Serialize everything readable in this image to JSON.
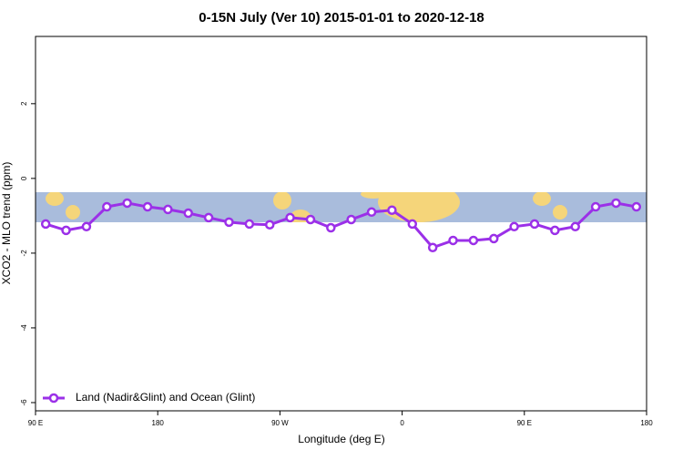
{
  "chart_data": {
    "type": "line",
    "title": "0-15N July (Ver 10)   2015-01-01 to 2020-12-18",
    "x_label": "Longitude (deg E)",
    "y_label": "XCO2 - MLO trend (ppm)",
    "x": [
      97.5,
      112.5,
      127.5,
      142.5,
      157.5,
      172.5,
      187.5,
      202.5,
      217.5,
      232.5,
      247.5,
      262.5,
      277.5,
      292.5,
      307.5,
      322.5,
      337.5,
      352.5,
      367.5,
      382.5,
      397.5,
      412.5,
      427.5,
      442.5,
      457.5,
      472.5,
      487.5,
      502.5,
      517.5,
      532.5
    ],
    "series": [
      {
        "name": "Land (Nadir&Glint) and Ocean (Glint)",
        "color": "#9b30e8",
        "values": [
          -1.22,
          -1.39,
          -1.29,
          -0.76,
          -0.66,
          -0.76,
          -0.83,
          -0.93,
          -1.05,
          -1.17,
          -1.22,
          -1.24,
          -1.05,
          -1.1,
          -1.32,
          -1.1,
          -0.9,
          -0.85,
          -1.22,
          -1.85,
          -1.66,
          -1.66,
          -1.61,
          -1.29,
          -1.22,
          -1.39,
          -1.29,
          -0.76,
          -0.66,
          -0.76
        ]
      }
    ],
    "xlim": [
      90,
      540
    ],
    "xticks": [
      {
        "value": 90,
        "label": "90 E"
      },
      {
        "value": 180,
        "label": "180"
      },
      {
        "value": 270,
        "label": "90 W"
      },
      {
        "value": 360,
        "label": "0"
      },
      {
        "value": 450,
        "label": "90 E"
      },
      {
        "value": 540,
        "label": "180"
      }
    ],
    "ylim": [
      -6.22,
      3.8
    ],
    "yticks": [
      -6,
      -4,
      -2,
      0,
      2
    ],
    "legend": "bottom-left"
  }
}
